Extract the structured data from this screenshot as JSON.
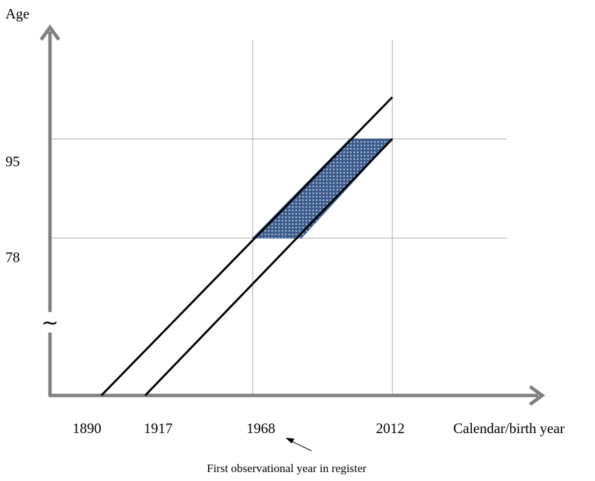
{
  "diagram": {
    "y_axis_label": "Age",
    "x_axis_label": "Calendar/birth year",
    "axis_break_symbol": "~",
    "y_ticks": [
      {
        "key": "upper",
        "label": "95"
      },
      {
        "key": "lower",
        "label": "78"
      }
    ],
    "x_ticks": [
      {
        "key": "birth1",
        "label": "1890"
      },
      {
        "key": "birth2",
        "label": "1917"
      },
      {
        "key": "first_obs",
        "label": "1968"
      },
      {
        "key": "last_obs",
        "label": "2012"
      }
    ],
    "annotation": "First observational year in register",
    "colors": {
      "axis": "#808080",
      "gridline": "#a6a6a6",
      "cohort_line": "#000000",
      "shaded_fill": "#3a5a8c",
      "shaded_dot": "#dbe4f0"
    }
  }
}
